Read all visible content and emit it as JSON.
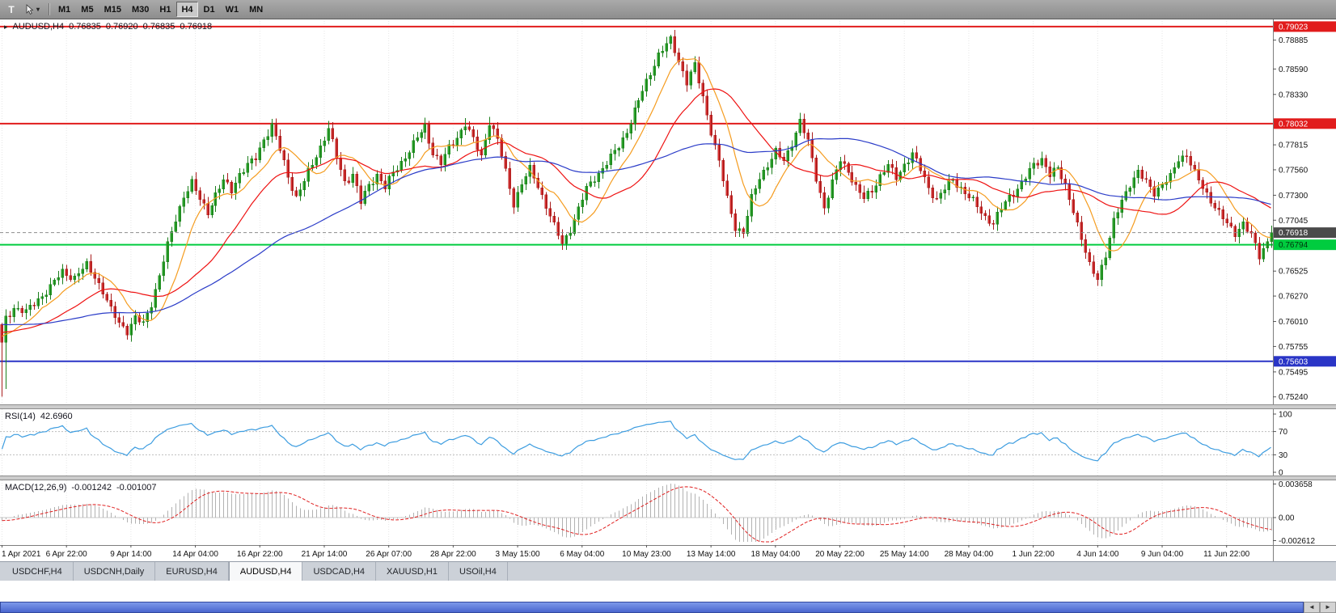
{
  "toolbar": {
    "t_button": "T",
    "timeframes": [
      "M1",
      "M5",
      "M15",
      "M30",
      "H1",
      "H4",
      "D1",
      "W1",
      "MN"
    ],
    "active_timeframe": "H4"
  },
  "chart_header": {
    "symbol": "AUDUSD,H4",
    "open": "0.76835",
    "high": "0.76920",
    "low": "0.76835",
    "close": "0.76918"
  },
  "price_axis": {
    "ticks": [
      "0.78885",
      "0.78590",
      "0.78330",
      "0.77815",
      "0.77560",
      "0.77300",
      "0.77045",
      "0.76525",
      "0.76270",
      "0.76010",
      "0.75755",
      "0.75495",
      "0.75240"
    ]
  },
  "levels": [
    {
      "price": 0.79023,
      "label": "0.79023",
      "color": "#e11c1c",
      "text_color": "#ffffff",
      "width": 2
    },
    {
      "price": 0.78032,
      "label": "0.78032",
      "color": "#e11c1c",
      "text_color": "#ffffff",
      "width": 2
    },
    {
      "price": 0.76794,
      "label": "0.76794",
      "color": "#00cc3f",
      "text_color": "#00320c",
      "width": 2
    },
    {
      "price": 0.75603,
      "label": "0.75603",
      "color": "#2a35c6",
      "text_color": "#ffffff",
      "width": 2
    }
  ],
  "current_price": {
    "value": 0.76918,
    "label": "0.76918",
    "box_color": "#4a4a4a",
    "text_color": "#ffffff"
  },
  "rsi_panel": {
    "label": "RSI(14)",
    "value": "42.6960",
    "axis_ticks": [
      "100",
      "70",
      "30",
      "0"
    ],
    "axis_values": [
      100,
      70,
      30,
      0
    ],
    "upper_level": 70,
    "lower_level": 30,
    "line_color": "#3d9de0"
  },
  "macd_panel": {
    "label": "MACD(12,26,9)",
    "value_main": "-0.001242",
    "value_signal": "-0.001007",
    "axis_ticks": [
      "0.003658",
      "0.00",
      "-0.002612"
    ],
    "range_max": 0.003658,
    "range_min": -0.002612,
    "bar_color": "#b2b2b2",
    "signal_color": "#e02020"
  },
  "time_axis": {
    "labels": [
      "1 Apr 2021",
      "6 Apr 22:00",
      "9 Apr 14:00",
      "14 Apr 04:00",
      "16 Apr 22:00",
      "21 Apr 14:00",
      "26 Apr 07:00",
      "28 Apr 22:00",
      "3 May 15:00",
      "6 May 04:00",
      "10 May 23:00",
      "13 May 14:00",
      "18 May 04:00",
      "20 May 22:00",
      "25 May 14:00",
      "28 May 04:00",
      "1 Jun 22:00",
      "4 Jun 14:00",
      "9 Jun 04:00",
      "11 Jun 22:00"
    ],
    "candles_per_label": 16
  },
  "tabs": {
    "items": [
      {
        "label": "USDCHF,H4"
      },
      {
        "label": "USDCNH,Daily"
      },
      {
        "label": "EURUSD,H4"
      },
      {
        "label": "AUDUSD,H4"
      },
      {
        "label": "USDCAD,H4"
      },
      {
        "label": "XAUUSD,H1"
      },
      {
        "label": "USOil,H4"
      }
    ],
    "active_index": 3
  },
  "scrollbar": {
    "left_arrow": "◄",
    "right_arrow": "►"
  },
  "chart_data": {
    "type": "candlestick",
    "symbol": "AUDUSD",
    "timeframe": "H4",
    "n_candles": 316,
    "price_range": {
      "top": 0.7908,
      "bottom": 0.7518
    },
    "up_color": "#2db22d",
    "up_stroke": "#1d7f1d",
    "down_color": "#e23434",
    "down_stroke": "#a81d1d",
    "price_path_anchors": [
      [
        0,
        0.758
      ],
      [
        1,
        0.7604
      ],
      [
        3,
        0.7616
      ],
      [
        6,
        0.761
      ],
      [
        9,
        0.7624
      ],
      [
        12,
        0.7636
      ],
      [
        15,
        0.7652
      ],
      [
        18,
        0.7646
      ],
      [
        21,
        0.7658
      ],
      [
        23,
        0.7648
      ],
      [
        25,
        0.7632
      ],
      [
        27,
        0.7612
      ],
      [
        29,
        0.76
      ],
      [
        31,
        0.7592
      ],
      [
        33,
        0.7604
      ],
      [
        35,
        0.7598
      ],
      [
        37,
        0.762
      ],
      [
        39,
        0.7648
      ],
      [
        41,
        0.7678
      ],
      [
        43,
        0.7706
      ],
      [
        45,
        0.773
      ],
      [
        47,
        0.7742
      ],
      [
        49,
        0.7726
      ],
      [
        51,
        0.7714
      ],
      [
        53,
        0.773
      ],
      [
        55,
        0.7744
      ],
      [
        57,
        0.7736
      ],
      [
        59,
        0.7752
      ],
      [
        61,
        0.776
      ],
      [
        63,
        0.7768
      ],
      [
        65,
        0.7788
      ],
      [
        67,
        0.7801
      ],
      [
        69,
        0.7776
      ],
      [
        71,
        0.775
      ],
      [
        73,
        0.7728
      ],
      [
        75,
        0.7744
      ],
      [
        77,
        0.7762
      ],
      [
        79,
        0.778
      ],
      [
        81,
        0.7798
      ],
      [
        83,
        0.7768
      ],
      [
        85,
        0.7744
      ],
      [
        87,
        0.7752
      ],
      [
        89,
        0.7722
      ],
      [
        91,
        0.774
      ],
      [
        93,
        0.7752
      ],
      [
        95,
        0.7738
      ],
      [
        97,
        0.7752
      ],
      [
        99,
        0.7764
      ],
      [
        101,
        0.7776
      ],
      [
        103,
        0.7788
      ],
      [
        105,
        0.78
      ],
      [
        107,
        0.7774
      ],
      [
        109,
        0.7762
      ],
      [
        111,
        0.7778
      ],
      [
        113,
        0.779
      ],
      [
        115,
        0.7803
      ],
      [
        117,
        0.7786
      ],
      [
        119,
        0.777
      ],
      [
        121,
        0.7806
      ],
      [
        123,
        0.7786
      ],
      [
        125,
        0.7754
      ],
      [
        127,
        0.7722
      ],
      [
        129,
        0.7742
      ],
      [
        131,
        0.7756
      ],
      [
        133,
        0.774
      ],
      [
        135,
        0.772
      ],
      [
        137,
        0.7698
      ],
      [
        139,
        0.768
      ],
      [
        141,
        0.7696
      ],
      [
        143,
        0.7716
      ],
      [
        145,
        0.7736
      ],
      [
        147,
        0.7748
      ],
      [
        149,
        0.7758
      ],
      [
        151,
        0.7768
      ],
      [
        153,
        0.778
      ],
      [
        155,
        0.7796
      ],
      [
        157,
        0.7816
      ],
      [
        159,
        0.7836
      ],
      [
        161,
        0.7856
      ],
      [
        163,
        0.7874
      ],
      [
        166,
        0.7888
      ],
      [
        168,
        0.7868
      ],
      [
        170,
        0.7846
      ],
      [
        172,
        0.7862
      ],
      [
        174,
        0.783
      ],
      [
        176,
        0.7796
      ],
      [
        178,
        0.7764
      ],
      [
        180,
        0.7726
      ],
      [
        182,
        0.7698
      ],
      [
        184,
        0.7692
      ],
      [
        186,
        0.7726
      ],
      [
        188,
        0.7748
      ],
      [
        190,
        0.7762
      ],
      [
        192,
        0.7774
      ],
      [
        194,
        0.7764
      ],
      [
        196,
        0.7784
      ],
      [
        198,
        0.7806
      ],
      [
        200,
        0.7784
      ],
      [
        202,
        0.7748
      ],
      [
        204,
        0.7718
      ],
      [
        206,
        0.7742
      ],
      [
        208,
        0.7766
      ],
      [
        210,
        0.7756
      ],
      [
        212,
        0.7738
      ],
      [
        214,
        0.7726
      ],
      [
        216,
        0.7736
      ],
      [
        218,
        0.775
      ],
      [
        220,
        0.776
      ],
      [
        222,
        0.7748
      ],
      [
        224,
        0.7762
      ],
      [
        226,
        0.7772
      ],
      [
        228,
        0.7756
      ],
      [
        230,
        0.7738
      ],
      [
        232,
        0.7726
      ],
      [
        234,
        0.7736
      ],
      [
        236,
        0.7746
      ],
      [
        238,
        0.7738
      ],
      [
        240,
        0.7728
      ],
      [
        242,
        0.7718
      ],
      [
        244,
        0.7708
      ],
      [
        246,
        0.7702
      ],
      [
        248,
        0.7716
      ],
      [
        250,
        0.7728
      ],
      [
        252,
        0.7738
      ],
      [
        254,
        0.7748
      ],
      [
        256,
        0.776
      ],
      [
        258,
        0.7768
      ],
      [
        260,
        0.7752
      ],
      [
        262,
        0.7756
      ],
      [
        264,
        0.774
      ],
      [
        266,
        0.7716
      ],
      [
        268,
        0.7684
      ],
      [
        270,
        0.7658
      ],
      [
        272,
        0.7647
      ],
      [
        274,
        0.7668
      ],
      [
        276,
        0.7702
      ],
      [
        278,
        0.7726
      ],
      [
        280,
        0.7742
      ],
      [
        282,
        0.7752
      ],
      [
        284,
        0.7744
      ],
      [
        286,
        0.7734
      ],
      [
        288,
        0.774
      ],
      [
        290,
        0.7748
      ],
      [
        292,
        0.7768
      ],
      [
        294,
        0.7772
      ],
      [
        296,
        0.7752
      ],
      [
        298,
        0.7738
      ],
      [
        300,
        0.7726
      ],
      [
        302,
        0.7712
      ],
      [
        304,
        0.77
      ],
      [
        306,
        0.7692
      ],
      [
        308,
        0.7702
      ],
      [
        310,
        0.7688
      ],
      [
        312,
        0.7668
      ],
      [
        314,
        0.7684
      ],
      [
        315,
        0.76918
      ]
    ],
    "wick_overrides": {
      "low": [
        [
          0,
          0.7524
        ],
        [
          1,
          0.7532
        ],
        [
          31,
          0.7585
        ],
        [
          139,
          0.7675
        ],
        [
          184,
          0.7686
        ],
        [
          272,
          0.7644
        ],
        [
          312,
          0.766
        ],
        [
          315,
          0.76835
        ]
      ],
      "high": [
        [
          67,
          0.7808
        ],
        [
          81,
          0.7806
        ],
        [
          115,
          0.7809
        ],
        [
          121,
          0.781
        ],
        [
          166,
          0.789
        ],
        [
          198,
          0.7813
        ],
        [
          293,
          0.7776
        ],
        [
          315,
          0.7692
        ]
      ]
    },
    "moving_averages": [
      {
        "period": 10,
        "color": "#f59c1f"
      },
      {
        "period": 25,
        "color": "#ee1212"
      },
      {
        "period": 60,
        "color": "#2b3cc8"
      }
    ],
    "horizontal_levels": [
      0.79023,
      0.78032,
      0.76794,
      0.75603
    ],
    "rsi": {
      "period": 14,
      "current": 42.696
    },
    "macd": {
      "fast": 12,
      "slow": 26,
      "signal": 9,
      "current_main": -0.001242,
      "current_signal": -0.001007
    }
  }
}
